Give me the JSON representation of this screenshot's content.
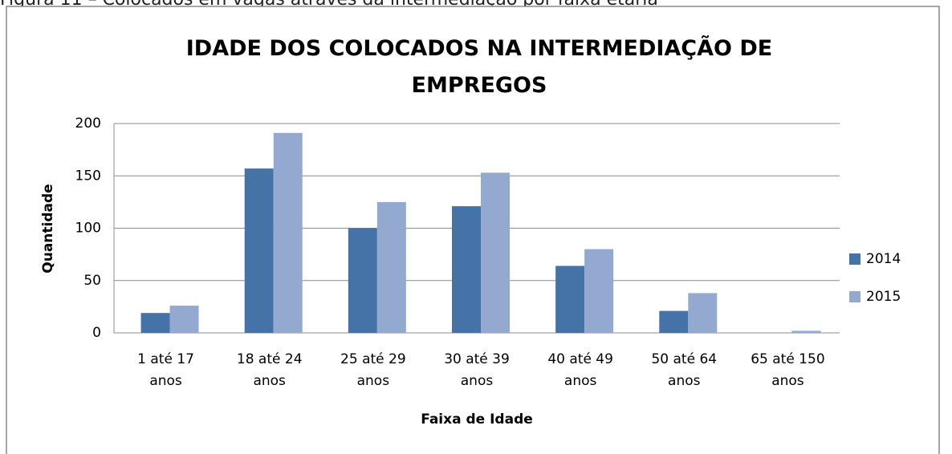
{
  "caption": "Figura 11 – Colocados em vagas através da intermediação por faixa etária",
  "chart_data": {
    "type": "bar",
    "title": "IDADE DOS COLOCADOS NA INTERMEDIAÇÃO DE EMPREGOS",
    "x_label": "Faixa de Idade",
    "y_label": "Quantidade",
    "categories": [
      "1 até 17 anos",
      "18 até 24 anos",
      "25 até 29 anos",
      "30 até 39 anos",
      "40 até 49 anos",
      "50 até 64 anos",
      "65 até 150 anos"
    ],
    "series": [
      {
        "name": "2014",
        "color": "#4572a7",
        "values": [
          19,
          157,
          100,
          121,
          64,
          21,
          0
        ]
      },
      {
        "name": "2015",
        "color": "#94a9d0",
        "values": [
          26,
          191,
          125,
          153,
          80,
          38,
          2
        ]
      }
    ],
    "ylim": [
      0,
      200
    ],
    "yticks": [
      0,
      50,
      100,
      150,
      200
    ],
    "grid": true,
    "legend": "right"
  }
}
